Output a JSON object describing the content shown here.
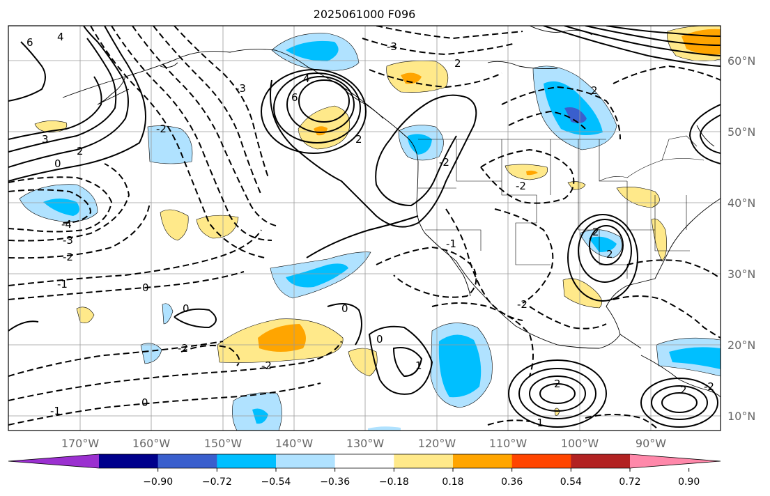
{
  "title": "2025061000 F096",
  "map": {
    "lat_labels": [
      "60°N",
      "50°N",
      "40°N",
      "30°N",
      "20°N",
      "10°N"
    ],
    "lon_labels": [
      "170°W",
      "160°W",
      "150°W",
      "140°W",
      "130°W",
      "120°W",
      "110°W",
      "100°W",
      "90°W"
    ],
    "gridlines": true,
    "contour_labels": [
      "6",
      "4",
      "3",
      "2",
      "0",
      "-4",
      "-3",
      "-2",
      "-1",
      "0",
      "0",
      "4",
      "6",
      "2",
      "-3",
      "2",
      "-2",
      "0",
      "2",
      "-2",
      "2",
      "2",
      "-2",
      "-1",
      "-2",
      "0",
      "-2",
      "-1",
      "0",
      "1",
      "-2",
      "2",
      "-1",
      "2",
      "-3",
      "-2"
    ]
  },
  "colorbar": {
    "ticks": [
      "−0.90",
      "−0.72",
      "−0.54",
      "−0.36",
      "−0.18",
      "0.18",
      "0.36",
      "0.54",
      "0.72",
      "0.90"
    ],
    "colors": [
      "#9b30d0",
      "#00008b",
      "#3a5fcd",
      "#00bfff",
      "#b0e2ff",
      "#ffffff",
      "#ffe98a",
      "#ffa500",
      "#ff4500",
      "#b22222",
      "#ff88aa"
    ]
  }
}
